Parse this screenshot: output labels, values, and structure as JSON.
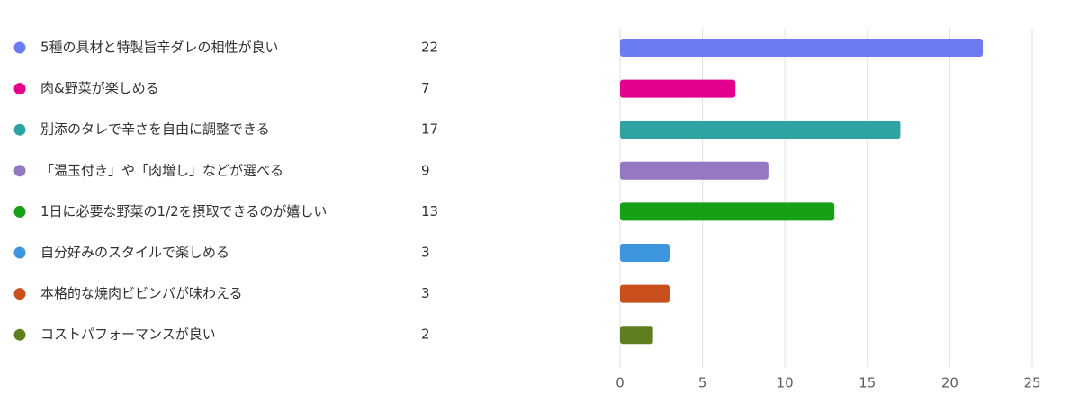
{
  "chart_data": {
    "type": "bar",
    "orientation": "horizontal",
    "categories": [
      "5種の具材と特製旨辛ダレの相性が良い",
      "肉&野菜が楽しめる",
      "別添のタレで辛さを自由に調整できる",
      "「温玉付き」や「肉増し」などが選べる",
      "1日に必要な野菜の1/2を摂取できるのが嬉しい",
      "自分好みのスタイルで楽しめる",
      "本格的な焼肉ビビンバが味わえる",
      "コストパフォーマンスが良い"
    ],
    "values": [
      22,
      7,
      17,
      9,
      13,
      3,
      3,
      2
    ],
    "colors": [
      "#6b7bf0",
      "#e3008c",
      "#2ea3a3",
      "#9479c2",
      "#15a015",
      "#3d96dd",
      "#c9501c",
      "#5f7f1e"
    ],
    "xlim": [
      0,
      25
    ],
    "xticks": [
      0,
      5,
      10,
      15,
      20,
      25
    ],
    "grid": true
  }
}
